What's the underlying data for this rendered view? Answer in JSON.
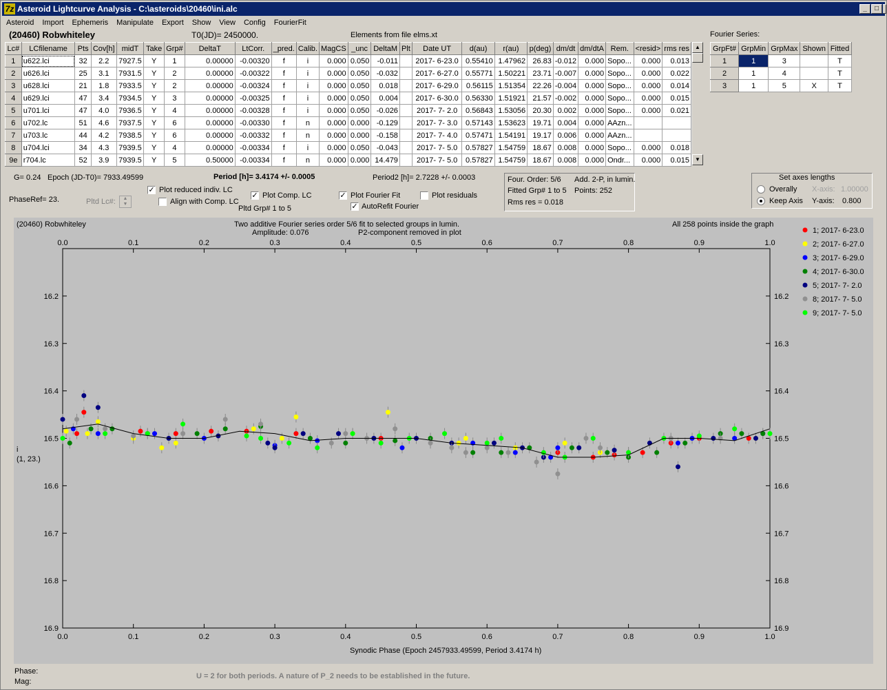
{
  "window": {
    "title": "Asteroid Lightcurve Analysis - C:\\asteroids\\20460\\ini.alc",
    "icon": "7z",
    "min": "_",
    "max": "□",
    "close": "X"
  },
  "menu": [
    "Asteroid",
    "Import",
    "Ephemeris",
    "Manipulate",
    "Export",
    "Show",
    "View",
    "Config",
    "FourierFit"
  ],
  "header": {
    "asteroid": "(20460) Robwhiteley",
    "t0": "T0(JD)= 2450000.",
    "elements": "Elements from file elms.xt"
  },
  "table": {
    "columns": [
      "Lc#",
      "LCfilename",
      "Pts",
      "Cov[h]",
      "midT",
      "Take",
      "Grp#",
      "DeltaT",
      "LtCorr.",
      "_pred.",
      "Calib.",
      "MagCS",
      "_unc",
      "DeltaM",
      "Plt",
      "Date UT",
      "d(au)",
      "r(au)",
      "p(deg)",
      "dm/dt",
      "dm/dtA",
      "Rem.",
      "<resid>",
      "rms res"
    ],
    "rows": [
      [
        "1",
        "u622.lci",
        "32",
        "2.2",
        "7927.5",
        "Y",
        "1",
        "0.00000",
        "-0.00320",
        "f",
        "i",
        "0.000",
        "0.050",
        "-0.011",
        "",
        "2017- 6-23.0",
        "0.55410",
        "1.47962",
        "26.83",
        "-0.012",
        "0.000",
        "Sopo...",
        "0.000",
        "0.013"
      ],
      [
        "2",
        "u626.lci",
        "25",
        "3.1",
        "7931.5",
        "Y",
        "2",
        "0.00000",
        "-0.00322",
        "f",
        "i",
        "0.000",
        "0.050",
        "-0.032",
        "",
        "2017- 6-27.0",
        "0.55771",
        "1.50221",
        "23.71",
        "-0.007",
        "0.000",
        "Sopo...",
        "0.000",
        "0.022"
      ],
      [
        "3",
        "u628.lci",
        "21",
        "1.8",
        "7933.5",
        "Y",
        "2",
        "0.00000",
        "-0.00324",
        "f",
        "i",
        "0.000",
        "0.050",
        "0.018",
        "",
        "2017- 6-29.0",
        "0.56115",
        "1.51354",
        "22.26",
        "-0.004",
        "0.000",
        "Sopo...",
        "0.000",
        "0.014"
      ],
      [
        "4",
        "u629.lci",
        "47",
        "3.4",
        "7934.5",
        "Y",
        "3",
        "0.00000",
        "-0.00325",
        "f",
        "i",
        "0.000",
        "0.050",
        "0.004",
        "",
        "2017- 6-30.0",
        "0.56330",
        "1.51921",
        "21.57",
        "-0.002",
        "0.000",
        "Sopo...",
        "0.000",
        "0.015"
      ],
      [
        "5",
        "u701.lci",
        "47",
        "4.0",
        "7936.5",
        "Y",
        "4",
        "0.00000",
        "-0.00328",
        "f",
        "i",
        "0.000",
        "0.050",
        "-0.026",
        "",
        "2017- 7- 2.0",
        "0.56843",
        "1.53056",
        "20.30",
        "0.002",
        "0.000",
        "Sopo...",
        "0.000",
        "0.021"
      ],
      [
        "6",
        "u702.lc",
        "51",
        "4.6",
        "7937.5",
        "Y",
        "6",
        "0.00000",
        "-0.00330",
        "f",
        "n",
        "0.000",
        "0.000",
        "-0.129",
        "",
        "2017- 7- 3.0",
        "0.57143",
        "1.53623",
        "19.71",
        "0.004",
        "0.000",
        "AAzn...",
        "",
        ""
      ],
      [
        "7",
        "u703.lc",
        "44",
        "4.2",
        "7938.5",
        "Y",
        "6",
        "0.00000",
        "-0.00332",
        "f",
        "n",
        "0.000",
        "0.000",
        "-0.158",
        "",
        "2017- 7- 4.0",
        "0.57471",
        "1.54191",
        "19.17",
        "0.006",
        "0.000",
        "AAzn...",
        "",
        ""
      ],
      [
        "8",
        "u704.lci",
        "34",
        "4.3",
        "7939.5",
        "Y",
        "4",
        "0.00000",
        "-0.00334",
        "f",
        "i",
        "0.000",
        "0.050",
        "-0.043",
        "",
        "2017- 7- 5.0",
        "0.57827",
        "1.54759",
        "18.67",
        "0.008",
        "0.000",
        "Sopo...",
        "0.000",
        "0.018"
      ],
      [
        "9e",
        "r704.lc",
        "52",
        "3.9",
        "7939.5",
        "Y",
        "5",
        "0.50000",
        "-0.00334",
        "f",
        "n",
        "0.000",
        "0.000",
        "14.479",
        "",
        "2017- 7- 5.0",
        "0.57827",
        "1.54759",
        "18.67",
        "0.008",
        "0.000",
        "Ondr...",
        "0.000",
        "0.015"
      ]
    ]
  },
  "fourier": {
    "label": "Fourier Series:",
    "columns": [
      "GrpFt#",
      "GrpMin",
      "GrpMax",
      "Shown",
      "Fitted"
    ],
    "rows": [
      [
        "1",
        "1",
        "3",
        "",
        "T"
      ],
      [
        "2",
        "1",
        "4",
        "",
        "T"
      ],
      [
        "3",
        "1",
        "5",
        "X",
        "T"
      ]
    ]
  },
  "info": {
    "g": "G= 0.24",
    "epoch": "Epoch (JD-T0)= 7933.49599",
    "period": "Period [h]= 3.4174 +/- 0.0005",
    "period2": "Period2 [h]= 2.7228 +/- 0.0003",
    "phaseref": "PhaseRef= 23.",
    "pltdlc": "Pltd Lc#:"
  },
  "checks": {
    "reduced": "Plot reduced indiv. LC",
    "align": "Align with Comp. LC",
    "comp": "Plot Comp. LC",
    "fit": "Plot Fourier Fit",
    "resid": "Plot residuals",
    "autorefit": "AutoRefit Fourier",
    "pltdgrp": "Pltd Grp#  1   to   5"
  },
  "fitbox": {
    "order": "Four. Order:  5/6",
    "add": "Add. 2-P, in lumin.",
    "fitted": "Fitted Grp# 1 to 5",
    "points": "Points: 252",
    "rms": "Rms res      = 0.018"
  },
  "axes": {
    "title": "Set axes lengths",
    "overall": "Overally",
    "keep": "Keep Axis",
    "xaxis": "X-axis:",
    "xval": "1.00000",
    "yaxis": "Y-axis:",
    "yval": "0.800"
  },
  "plot": {
    "name": "(20460) Robwhiteley",
    "line1": "Two additive Fourier series order 5/6 fit to selected groups in lumin.",
    "line2a": "Amplitude: 0.076",
    "line2b": "P2-component removed in plot",
    "inside": "All 258 points inside the graph",
    "ylab1": "i",
    "ylab2": "(1, 23.)",
    "xlabel": "Synodic Phase (Epoch 2457933.49599, Period 3.4174 h)"
  },
  "bottom": {
    "phase": "Phase:",
    "mag": "Mag:",
    "note": "U = 2 for both periods.  A nature of P_2 needs to be established in the future."
  },
  "chart_data": {
    "type": "scatter",
    "xlim": [
      0,
      1
    ],
    "ylim": [
      16.9,
      16.1
    ],
    "yticks": [
      "16.2",
      "16.3",
      "16.4",
      "16.5",
      "16.6",
      "16.7",
      "16.8",
      "16.9"
    ],
    "xticks": [
      "0.0",
      "0.1",
      "0.2",
      "0.3",
      "0.4",
      "0.5",
      "0.6",
      "0.7",
      "0.8",
      "0.9",
      "1.0"
    ],
    "series": [
      {
        "name": "1; 2017- 6-23.0",
        "color": "#ff0000",
        "x": [
          0.02,
          0.03,
          0.11,
          0.16,
          0.21,
          0.26,
          0.33,
          0.45,
          0.7,
          0.75,
          0.78,
          0.82,
          0.86,
          0.9,
          0.97
        ],
        "y": [
          16.49,
          16.445,
          16.485,
          16.49,
          16.485,
          16.485,
          16.49,
          16.5,
          16.53,
          16.54,
          16.535,
          16.53,
          16.51,
          16.5,
          16.5
        ]
      },
      {
        "name": "2; 2017- 6-27.0",
        "color": "#ffff00",
        "x": [
          0.005,
          0.035,
          0.05,
          0.1,
          0.14,
          0.16,
          0.27,
          0.31,
          0.33,
          0.41,
          0.46,
          0.56,
          0.57,
          0.64,
          0.71,
          0.76,
          0.98
        ],
        "y": [
          16.485,
          16.49,
          16.465,
          16.5,
          16.52,
          16.51,
          16.48,
          16.5,
          16.455,
          16.49,
          16.445,
          16.51,
          16.5,
          16.52,
          16.51,
          16.53,
          16.5
        ]
      },
      {
        "name": "3; 2017- 6-29.0",
        "color": "#0000ff",
        "x": [
          0.015,
          0.05,
          0.13,
          0.2,
          0.3,
          0.36,
          0.48,
          0.58,
          0.64,
          0.69,
          0.7,
          0.87,
          0.89,
          0.95,
          0.99
        ],
        "y": [
          16.48,
          16.49,
          16.49,
          16.5,
          16.515,
          16.505,
          16.52,
          16.51,
          16.53,
          16.54,
          16.52,
          16.51,
          16.5,
          16.5,
          16.49
        ]
      },
      {
        "name": "4; 2017- 6-30.0",
        "color": "#008000",
        "x": [
          0.01,
          0.04,
          0.07,
          0.12,
          0.19,
          0.23,
          0.28,
          0.35,
          0.4,
          0.47,
          0.52,
          0.58,
          0.62,
          0.66,
          0.72,
          0.77,
          0.8,
          0.84,
          0.88,
          0.93,
          0.96,
          0.99
        ],
        "y": [
          16.51,
          16.48,
          16.48,
          16.49,
          16.49,
          16.48,
          16.475,
          16.5,
          16.51,
          16.505,
          16.5,
          16.53,
          16.53,
          16.52,
          16.52,
          16.53,
          16.54,
          16.53,
          16.51,
          16.49,
          16.49,
          16.49
        ]
      },
      {
        "name": "5; 2017- 7- 2.0",
        "color": "#000080",
        "x": [
          0.0,
          0.03,
          0.05,
          0.15,
          0.22,
          0.29,
          0.3,
          0.34,
          0.39,
          0.44,
          0.5,
          0.55,
          0.61,
          0.65,
          0.68,
          0.73,
          0.78,
          0.83,
          0.87,
          0.92,
          0.98
        ],
        "y": [
          16.46,
          16.41,
          16.435,
          16.5,
          16.495,
          16.51,
          16.52,
          16.49,
          16.49,
          16.5,
          16.5,
          16.51,
          16.51,
          16.52,
          16.54,
          16.52,
          16.525,
          16.51,
          16.56,
          16.5,
          16.5
        ]
      },
      {
        "name": "8; 2017- 7- 5.0",
        "color": "#909090",
        "x": [
          0.02,
          0.06,
          0.1,
          0.17,
          0.23,
          0.28,
          0.38,
          0.4,
          0.43,
          0.47,
          0.52,
          0.55,
          0.57,
          0.6,
          0.63,
          0.67,
          0.7,
          0.74,
          0.76,
          0.8,
          0.86,
          0.93
        ],
        "y": [
          16.46,
          16.48,
          16.495,
          16.49,
          16.46,
          16.47,
          16.51,
          16.49,
          16.5,
          16.48,
          16.51,
          16.52,
          16.53,
          16.52,
          16.53,
          16.55,
          16.575,
          16.5,
          16.52,
          16.53,
          16.5,
          16.5
        ]
      },
      {
        "name": "9; 2017- 7- 5.0",
        "color": "#00ff00",
        "x": [
          0.0,
          0.06,
          0.12,
          0.17,
          0.26,
          0.28,
          0.32,
          0.36,
          0.41,
          0.45,
          0.49,
          0.54,
          0.6,
          0.62,
          0.68,
          0.71,
          0.75,
          0.8,
          0.85,
          0.9,
          0.95,
          1.0
        ],
        "y": [
          16.5,
          16.49,
          16.49,
          16.47,
          16.495,
          16.5,
          16.51,
          16.52,
          16.49,
          16.51,
          16.5,
          16.49,
          16.51,
          16.5,
          16.53,
          16.54,
          16.5,
          16.53,
          16.5,
          16.495,
          16.48,
          16.49
        ]
      }
    ],
    "fit": {
      "x": [
        0,
        0.05,
        0.1,
        0.15,
        0.2,
        0.25,
        0.3,
        0.35,
        0.4,
        0.45,
        0.5,
        0.55,
        0.6,
        0.65,
        0.7,
        0.75,
        0.8,
        0.85,
        0.9,
        0.95,
        1.0
      ],
      "y": [
        16.48,
        16.47,
        16.49,
        16.5,
        16.5,
        16.485,
        16.49,
        16.505,
        16.5,
        16.5,
        16.5,
        16.51,
        16.515,
        16.52,
        16.54,
        16.54,
        16.535,
        16.5,
        16.5,
        16.505,
        16.48
      ]
    }
  }
}
